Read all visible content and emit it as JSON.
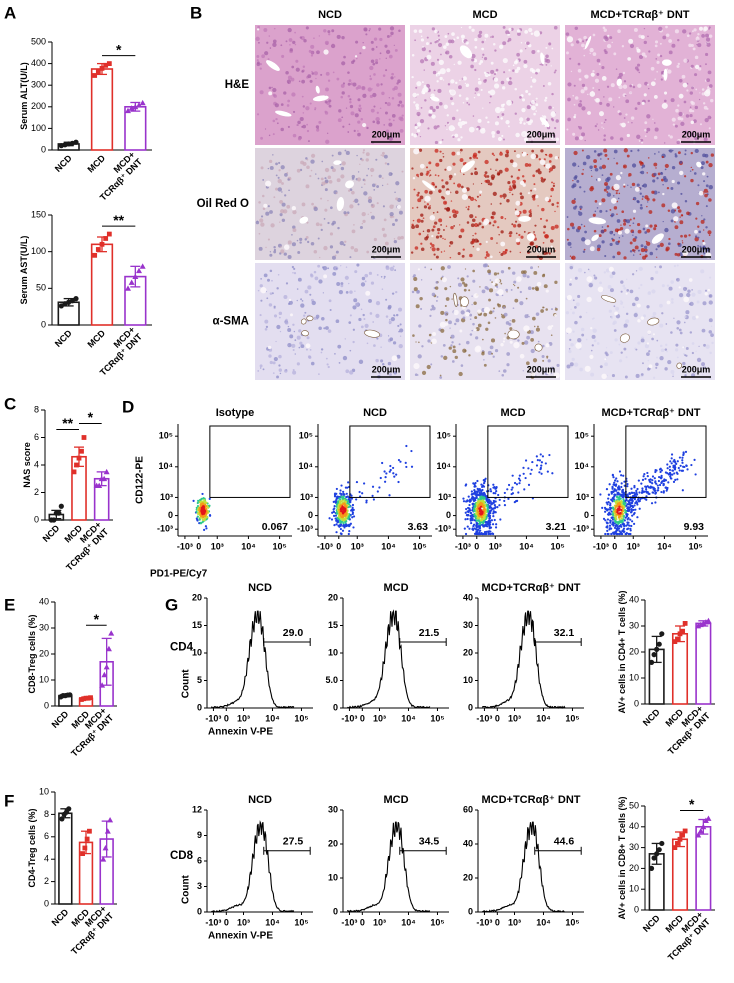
{
  "panel_labels": [
    "A",
    "B",
    "C",
    "D",
    "E",
    "F",
    "G"
  ],
  "groups": [
    [
      "NCD"
    ],
    [
      "MCD"
    ],
    [
      "MCD+",
      "TCRαβ⁺ DNT"
    ]
  ],
  "group_colors": [
    "#1a1a1a",
    "#e0302a",
    "#9933cc"
  ],
  "bar_charts": [
    {
      "type": "bar",
      "ylabel": "Serum ALT(U/L)",
      "ylim": [
        0,
        500
      ],
      "yticks": [
        0,
        100,
        200,
        300,
        400,
        500
      ],
      "values": [
        28,
        375,
        200
      ],
      "errors": [
        8,
        25,
        20
      ],
      "points": [
        [
          20,
          24,
          28,
          31,
          36
        ],
        [
          345,
          362,
          378,
          392,
          400
        ],
        [
          182,
          194,
          200,
          208,
          218
        ]
      ],
      "significance": [
        {
          "text": "*",
          "groups": [
            1,
            2
          ]
        }
      ]
    },
    {
      "type": "bar",
      "ylabel": "Serum AST(U/L)",
      "ylim": [
        0,
        150
      ],
      "yticks": [
        0,
        50,
        100,
        150
      ],
      "values": [
        31,
        110,
        66
      ],
      "errors": [
        5,
        10,
        14
      ],
      "points": [
        [
          26,
          29,
          31,
          33,
          36
        ],
        [
          95,
          103,
          110,
          118,
          124
        ],
        [
          50,
          58,
          66,
          74,
          80
        ]
      ],
      "significance": [
        {
          "text": "**",
          "groups": [
            1,
            2
          ]
        }
      ]
    },
    {
      "type": "bar",
      "ylabel": "NAS score",
      "ylim": [
        0,
        8
      ],
      "yticks": [
        0,
        2,
        4,
        6,
        8
      ],
      "values": [
        0.4,
        4.6,
        3
      ],
      "errors": [
        0.3,
        0.7,
        0.5
      ],
      "points": [
        [
          0,
          0,
          0.5,
          0.5,
          1
        ],
        [
          3.5,
          4,
          4.5,
          5,
          6
        ],
        [
          2.5,
          2.5,
          3,
          3,
          3.5
        ]
      ],
      "significance": [
        {
          "text": "**",
          "groups": [
            0,
            1
          ]
        },
        {
          "text": "*",
          "groups": [
            1,
            2
          ]
        }
      ]
    },
    {
      "type": "bar",
      "ylabel": "CD8-Treg cells (%)",
      "ylim": [
        0,
        40
      ],
      "yticks": [
        0,
        10,
        20,
        30,
        40
      ],
      "values": [
        4,
        2.9,
        17
      ],
      "errors": [
        0.4,
        0.3,
        9
      ],
      "points": [
        [
          3.5,
          4,
          4,
          4.2,
          4.3
        ],
        [
          2.5,
          2.8,
          3,
          3,
          3.2
        ],
        [
          8,
          12,
          15,
          22,
          28
        ]
      ],
      "significance": [
        {
          "text": "*",
          "groups": [
            1,
            2
          ]
        }
      ]
    },
    {
      "type": "bar",
      "ylabel": "CD4-Treg cells (%)",
      "ylim": [
        0,
        10
      ],
      "yticks": [
        0,
        2,
        4,
        6,
        8,
        10
      ],
      "values": [
        8.1,
        5.5,
        5.8
      ],
      "errors": [
        0.4,
        1,
        1.6
      ],
      "points": [
        [
          7.6,
          8,
          8.2,
          8.5
        ],
        [
          4.5,
          5,
          5.8,
          6.5
        ],
        [
          4,
          5,
          6.5,
          7.5
        ]
      ],
      "significance": []
    },
    {
      "type": "bar",
      "ylabel": "AV+ cells in CD4+ T cells (%)",
      "ylim": [
        0,
        40
      ],
      "yticks": [
        0,
        10,
        20,
        30,
        40
      ],
      "values": [
        21,
        27,
        31
      ],
      "errors": [
        5,
        3,
        1
      ],
      "points": [
        [
          16,
          19,
          21,
          23,
          27
        ],
        [
          24,
          25,
          27,
          28,
          31
        ],
        [
          30,
          30.5,
          31,
          31.5,
          32
        ]
      ],
      "significance": []
    },
    {
      "type": "bar",
      "ylabel": "AV+ cells in CD8+ T cells (%)",
      "ylim": [
        0,
        50
      ],
      "yticks": [
        0,
        10,
        20,
        30,
        40,
        50
      ],
      "values": [
        27,
        34,
        40
      ],
      "errors": [
        5,
        3.5,
        3.5
      ],
      "points": [
        [
          20,
          25,
          27,
          29,
          32
        ],
        [
          30,
          32,
          34,
          36,
          38
        ],
        [
          36,
          38,
          40,
          43,
          44
        ]
      ],
      "significance": [
        {
          "text": "*",
          "groups": [
            1,
            2
          ]
        }
      ]
    }
  ],
  "histology": {
    "columns": [
      "NCD",
      "MCD",
      "MCD+TCRαβ⁺ DNT"
    ],
    "rows": [
      "H&E",
      "Oil Red O",
      "α-SMA"
    ],
    "scale_bar": "200μm"
  },
  "flow": {
    "type": "scatter",
    "xlabel": "PD1-PE/Cy7",
    "ylabel": "CD122-PE",
    "xlim": [
      -1500,
      250000
    ],
    "ylim": [
      -1500,
      250000
    ],
    "xticks": [
      {
        "value": -1000,
        "label": "-10³"
      },
      0,
      {
        "value": 1000,
        "label": "10³"
      },
      {
        "value": 10000,
        "label": "10⁴"
      },
      {
        "value": 100000,
        "label": "10⁵"
      }
    ],
    "yticks": [
      {
        "value": -1000,
        "label": "-10³"
      },
      0,
      {
        "value": 1000,
        "label": "10³"
      },
      {
        "value": 10000,
        "label": "10⁴"
      },
      {
        "value": 100000,
        "label": "10⁵"
      }
    ],
    "plots": [
      {
        "title": "Isotype",
        "gate": 0.067
      },
      {
        "title": "NCD",
        "gate": 3.63
      },
      {
        "title": "MCD",
        "gate": 3.21
      },
      {
        "title": "MCD+TCRαβ⁺ DNT",
        "gate": 9.93
      }
    ]
  },
  "apoptosis": {
    "type": "histogram",
    "xlabel": "Annexin V-PE",
    "ylabel": "Count",
    "xlim": [
      -1500,
      250000
    ],
    "xticks": [
      {
        "value": -1000,
        "label": "-10³"
      },
      0,
      {
        "value": 1000,
        "label": "10³"
      },
      {
        "value": 10000,
        "label": "10⁴"
      },
      {
        "value": 100000,
        "label": "10⁵"
      }
    ],
    "rows": [
      {
        "label": "CD4",
        "plots": [
          {
            "title": "NCD",
            "ylim": [
              0,
              20
            ],
            "yticks": [
              0,
              5,
              10,
              15,
              20
            ],
            "gate": 29,
            "gate_label": "29.0"
          },
          {
            "title": "MCD",
            "ylim": [
              0,
              20
            ],
            "yticks": [
              0,
              {
                "value": 5,
                "label": "5.0"
              },
              10,
              15,
              20
            ],
            "gate": 21.5
          },
          {
            "title": "MCD+TCRαβ⁺ DNT",
            "ylim": [
              0,
              40
            ],
            "yticks": [
              0,
              10,
              20,
              30,
              40
            ],
            "gate": 32.1
          }
        ]
      },
      {
        "label": "CD8",
        "plots": [
          {
            "title": "NCD",
            "ylim": [
              0,
              12
            ],
            "yticks": [
              0,
              3,
              6,
              9,
              12
            ],
            "gate": 27.5
          },
          {
            "title": "MCD",
            "ylim": [
              0,
              30
            ],
            "yticks": [
              0,
              10,
              20,
              30
            ],
            "gate": 34.5
          },
          {
            "title": "MCD+TCRαβ⁺ DNT",
            "ylim": [
              0,
              60
            ],
            "yticks": [
              0,
              20,
              40,
              60
            ],
            "gate": 44.6
          }
        ]
      }
    ]
  }
}
